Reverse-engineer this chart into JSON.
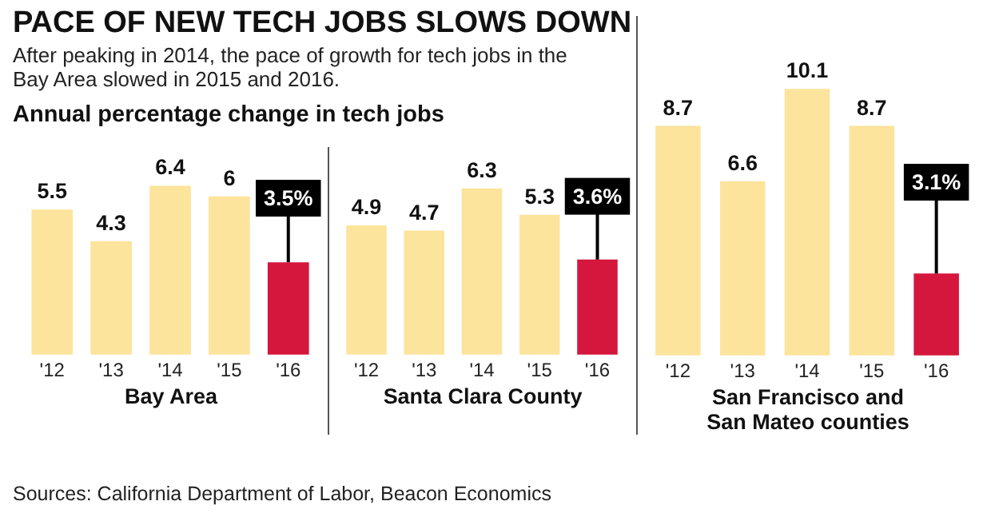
{
  "chart_data": [
    {
      "type": "bar",
      "title": "PACE OF NEW TECH JOBS SLOWS DOWN",
      "subtitle": "After peaking in 2014, the pace of growth for tech jobs in the Bay Area slowed in 2015 and 2016.",
      "annotations": [
        "Annual percentage change in tech jobs",
        "Sources: California Department of Labor, Beacon Economics"
      ],
      "xlabel": "Bay Area",
      "categories": [
        "'12",
        "'13",
        "'14",
        "'15",
        "'16"
      ],
      "values": [
        5.5,
        4.3,
        6.4,
        6,
        3.5
      ],
      "value_labels": [
        "5.5",
        "4.3",
        "6.4",
        "6",
        "3.5%"
      ],
      "colors": [
        "#fde49c",
        "#fde49c",
        "#fde49c",
        "#fde49c",
        "#d5173d"
      ],
      "tick_labels": "x"
    },
    {
      "type": "bar",
      "xlabel": "Santa Clara County",
      "categories": [
        "'12",
        "'13",
        "'14",
        "'15",
        "'16"
      ],
      "values": [
        4.9,
        4.7,
        6.3,
        5.3,
        3.6
      ],
      "value_labels": [
        "4.9",
        "4.7",
        "6.3",
        "5.3",
        "3.6%"
      ],
      "colors": [
        "#fde49c",
        "#fde49c",
        "#fde49c",
        "#fde49c",
        "#d5173d"
      ],
      "tick_labels": "x"
    },
    {
      "type": "bar",
      "xlabel": "San Francisco and San Mateo counties",
      "categories": [
        "'12",
        "'13",
        "'14",
        "'15",
        "'16"
      ],
      "values": [
        8.7,
        6.6,
        10.1,
        8.7,
        3.1
      ],
      "value_labels": [
        "8.7",
        "6.6",
        "10.1",
        "8.7",
        "3.1%"
      ],
      "colors": [
        "#fde49c",
        "#fde49c",
        "#fde49c",
        "#fde49c",
        "#d5173d"
      ],
      "tick_labels": "x"
    }
  ]
}
